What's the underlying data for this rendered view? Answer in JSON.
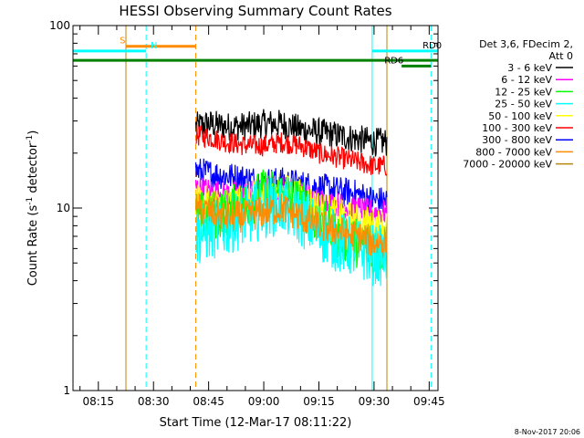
{
  "chart_data": {
    "type": "line",
    "title": "HESSI Observing Summary Count Rates",
    "xlabel": "Start Time (12-Mar-17 08:11:22)",
    "ylabel": "Count Rate (s⁻¹ detector⁻¹)",
    "ylabel_parts": {
      "main": "Count Rate (s",
      "sup1": "-1",
      "mid": " detector",
      "sup2": "-1",
      "end": ")"
    },
    "yscale": "log",
    "ylim": [
      1,
      100
    ],
    "xlim_minutes": [
      8.1,
      107.4
    ],
    "x_tick_labels": [
      "08:15",
      "08:30",
      "08:45",
      "09:00",
      "09:15",
      "09:30",
      "09:45"
    ],
    "x_tick_minutes": [
      15,
      30,
      45,
      60,
      75,
      90,
      105
    ],
    "y_tick_labels": [
      "1",
      "10",
      "100"
    ],
    "y_tick_values": [
      1,
      10,
      100
    ],
    "legend": {
      "header": [
        "Det 3,6, FDecim 2,",
        "Att 0"
      ],
      "position": "right",
      "entries": [
        {
          "label": "3 - 6 keV",
          "color": "#000000"
        },
        {
          "label": "6 - 12 keV",
          "color": "#ff00ff"
        },
        {
          "label": "12 - 25 keV",
          "color": "#00ff00"
        },
        {
          "label": "25 - 50 keV",
          "color": "#00ffff"
        },
        {
          "label": "50 - 100 keV",
          "color": "#ffff00"
        },
        {
          "label": "100 - 300 keV",
          "color": "#ff0000"
        },
        {
          "label": "300 - 800 keV",
          "color": "#0000ff"
        },
        {
          "label": "800 - 7000 keV",
          "color": "#ff8c00"
        },
        {
          "label": "7000 - 20000 keV",
          "color": "#b8860b"
        }
      ]
    },
    "series": [
      {
        "name": "3 - 6 keV",
        "color": "#000000",
        "x_minutes": [
          41.5,
          45,
          50,
          55,
          60,
          65,
          70,
          75,
          80,
          85,
          90,
          93.5
        ],
        "values": [
          28,
          29,
          28,
          28,
          29,
          29,
          27,
          26,
          25,
          24,
          23,
          23
        ],
        "noise": 0.08
      },
      {
        "name": "100 - 300 keV",
        "color": "#ff0000",
        "x_minutes": [
          41.5,
          45,
          50,
          55,
          60,
          65,
          70,
          75,
          80,
          85,
          90,
          93.5
        ],
        "values": [
          25,
          24.5,
          23,
          22,
          22,
          23,
          22,
          20,
          19,
          18,
          17,
          17
        ],
        "noise": 0.06
      },
      {
        "name": "300 - 800 keV",
        "color": "#0000ff",
        "x_minutes": [
          41.5,
          45,
          50,
          55,
          60,
          65,
          70,
          75,
          80,
          85,
          90,
          93.5
        ],
        "values": [
          16,
          15.5,
          15,
          14.5,
          14,
          14,
          13.5,
          13,
          12.5,
          12,
          11,
          11
        ],
        "noise": 0.08
      },
      {
        "name": "6 - 12 keV",
        "color": "#ff00ff",
        "x_minutes": [
          41.5,
          45,
          50,
          55,
          60,
          65,
          70,
          75,
          80,
          85,
          90,
          93.5
        ],
        "values": [
          13,
          12.5,
          12,
          12,
          12.5,
          13,
          12,
          11,
          10.5,
          10,
          9.5,
          9.5
        ],
        "noise": 0.07
      },
      {
        "name": "50 - 100 keV",
        "color": "#ffff00",
        "x_minutes": [
          41.5,
          45,
          50,
          55,
          60,
          65,
          70,
          75,
          80,
          85,
          90,
          93.5
        ],
        "values": [
          11,
          10.5,
          10.5,
          11,
          12,
          12.5,
          11.5,
          10,
          9,
          8.5,
          8,
          8
        ],
        "noise": 0.1
      },
      {
        "name": "12 - 25 keV",
        "color": "#00ff00",
        "x_minutes": [
          41.5,
          45,
          50,
          55,
          60,
          65,
          70,
          75,
          80,
          85,
          90,
          93.5
        ],
        "values": [
          9,
          9,
          9.5,
          10.5,
          12,
          12,
          10.5,
          8.5,
          7,
          6.5,
          6,
          6
        ],
        "noise": 0.14
      },
      {
        "name": "25 - 50 keV",
        "color": "#00ffff",
        "x_minutes": [
          41.5,
          45,
          50,
          55,
          60,
          65,
          70,
          75,
          80,
          85,
          90,
          93.5
        ],
        "values": [
          7,
          7.5,
          8,
          9,
          10,
          10.5,
          9,
          7.5,
          6.5,
          6,
          5.5,
          5.5
        ],
        "noise": 0.17
      },
      {
        "name": "800 - 7000 keV",
        "color": "#ff8c00",
        "x_minutes": [
          41.5,
          45,
          50,
          55,
          60,
          65,
          70,
          75,
          80,
          85,
          90,
          93.5
        ],
        "values": [
          10,
          9.5,
          9,
          9,
          9.5,
          10,
          9,
          8,
          7.5,
          7,
          6.5,
          6.5
        ],
        "noise": 0.09
      }
    ],
    "flag_lines": [
      {
        "label": "S",
        "color": "#ff8c00",
        "y": 77,
        "x_start_minutes": 22.5,
        "x_end_minutes": 41.5,
        "label_minutes": 20.8
      },
      {
        "label": "N",
        "color": "#00ffff",
        "y": 72.5,
        "x_start_minutes": 8.1,
        "x_end_minutes": 28.0,
        "label_minutes": 29.2
      },
      {
        "label": "",
        "color": "#008000",
        "y": 64.5,
        "x_start_minutes": 8.1,
        "x_end_minutes": 107.4,
        "label_minutes": 0
      },
      {
        "label": "RD0",
        "color": "#00ffff",
        "y": 72.5,
        "x_start_minutes": 89.5,
        "x_end_minutes": 107.4,
        "label_minutes": 103.2
      },
      {
        "label": "RD6",
        "color": "#008000",
        "y": 60,
        "x_start_minutes": 97.5,
        "x_end_minutes": 105.5,
        "label_minutes": 92.8
      }
    ],
    "vertical_lines": [
      {
        "x_minutes": 8.1,
        "color": "#00ffff",
        "style": "solid"
      },
      {
        "x_minutes": 22.5,
        "color": "#b8860b",
        "style": "solid"
      },
      {
        "x_minutes": 28.0,
        "color": "#00ffff",
        "style": "dashed"
      },
      {
        "x_minutes": 41.5,
        "color": "#ff8c00",
        "style": "dashed"
      },
      {
        "x_minutes": 89.5,
        "color": "#00ffff",
        "style": "solid"
      },
      {
        "x_minutes": 93.5,
        "color": "#b8860b",
        "style": "solid"
      },
      {
        "x_minutes": 105.5,
        "color": "#00ffff",
        "style": "dashed"
      }
    ],
    "grid": false
  },
  "footer": {
    "timestamp": "8-Nov-2017 20:06"
  }
}
